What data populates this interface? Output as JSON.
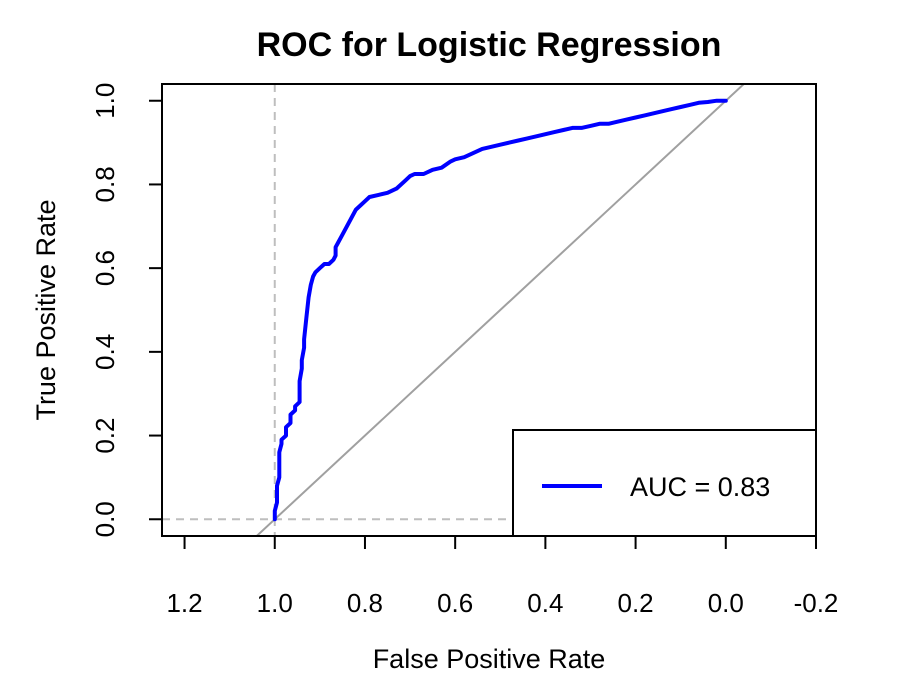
{
  "chart_data": {
    "type": "line",
    "title": "ROC for Logistic Regression",
    "xlabel": "False Positive Rate",
    "ylabel": "True Positive Rate",
    "x_axis_reversed": true,
    "xlim": [
      1.25,
      -0.2
    ],
    "ylim": [
      -0.04,
      1.04
    ],
    "x_ticks": [
      1.2,
      1.0,
      0.8,
      0.6,
      0.4,
      0.2,
      0.0,
      -0.2
    ],
    "x_tick_labels": [
      "1.2",
      "1.0",
      "0.8",
      "0.6",
      "0.4",
      "0.2",
      "0.0",
      "-0.2"
    ],
    "y_ticks": [
      0.0,
      0.2,
      0.4,
      0.6,
      0.8,
      1.0
    ],
    "y_tick_labels": [
      "0.0",
      "0.2",
      "0.4",
      "0.6",
      "0.8",
      "1.0"
    ],
    "grid": false,
    "legend": {
      "position": "bottom-right",
      "entries": [
        {
          "label": "AUC = 0.83",
          "color": "#0000ff"
        }
      ]
    },
    "reference_lines": {
      "diagonal": {
        "from": [
          1.05,
          -0.05
        ],
        "to": [
          -0.05,
          1.05
        ],
        "color": "#a0a0a0"
      },
      "vertical_dashed_x": 1.0,
      "horizontal_dashed_y": 0.0,
      "dash_color": "#bebebe"
    },
    "series": [
      {
        "name": "AUC = 0.83",
        "color": "#0000ff",
        "x": [
          1.0,
          1.0,
          0.995,
          0.995,
          0.99,
          0.99,
          0.985,
          0.985,
          0.975,
          0.975,
          0.965,
          0.965,
          0.955,
          0.955,
          0.945,
          0.945,
          0.94,
          0.94,
          0.935,
          0.935,
          0.93,
          0.925,
          0.92,
          0.915,
          0.91,
          0.9,
          0.89,
          0.88,
          0.87,
          0.865,
          0.865,
          0.86,
          0.85,
          0.84,
          0.83,
          0.82,
          0.81,
          0.8,
          0.79,
          0.77,
          0.75,
          0.73,
          0.71,
          0.7,
          0.69,
          0.67,
          0.65,
          0.63,
          0.61,
          0.6,
          0.58,
          0.56,
          0.54,
          0.52,
          0.5,
          0.48,
          0.46,
          0.44,
          0.42,
          0.4,
          0.38,
          0.36,
          0.34,
          0.32,
          0.3,
          0.28,
          0.26,
          0.24,
          0.22,
          0.2,
          0.18,
          0.16,
          0.14,
          0.12,
          0.1,
          0.08,
          0.06,
          0.04,
          0.02,
          0.0
        ],
        "y": [
          0.0,
          0.02,
          0.04,
          0.08,
          0.1,
          0.16,
          0.18,
          0.19,
          0.2,
          0.22,
          0.23,
          0.25,
          0.26,
          0.27,
          0.28,
          0.33,
          0.36,
          0.38,
          0.41,
          0.43,
          0.48,
          0.53,
          0.56,
          0.58,
          0.59,
          0.6,
          0.61,
          0.61,
          0.62,
          0.63,
          0.65,
          0.66,
          0.68,
          0.7,
          0.72,
          0.74,
          0.75,
          0.76,
          0.77,
          0.775,
          0.78,
          0.79,
          0.81,
          0.82,
          0.825,
          0.825,
          0.835,
          0.84,
          0.855,
          0.86,
          0.865,
          0.875,
          0.885,
          0.89,
          0.895,
          0.9,
          0.905,
          0.91,
          0.915,
          0.92,
          0.925,
          0.93,
          0.935,
          0.935,
          0.94,
          0.945,
          0.945,
          0.95,
          0.955,
          0.96,
          0.965,
          0.97,
          0.975,
          0.98,
          0.985,
          0.99,
          0.995,
          0.997,
          1.0,
          1.0
        ]
      }
    ]
  }
}
